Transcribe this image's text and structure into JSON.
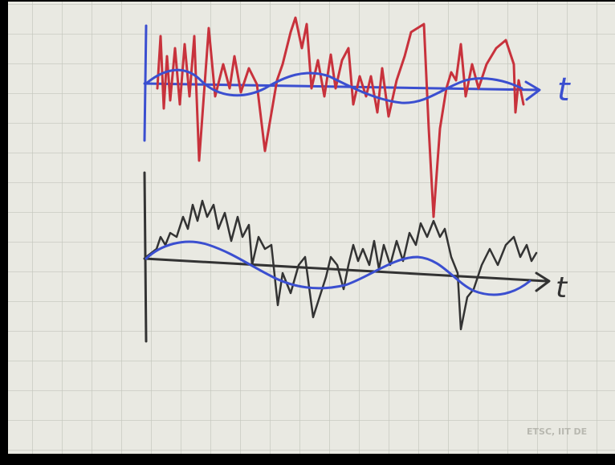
{
  "sketch": {
    "top_axis_label": "t",
    "bottom_axis_label": "t"
  },
  "watermark": "ETSC, IIT DE"
}
